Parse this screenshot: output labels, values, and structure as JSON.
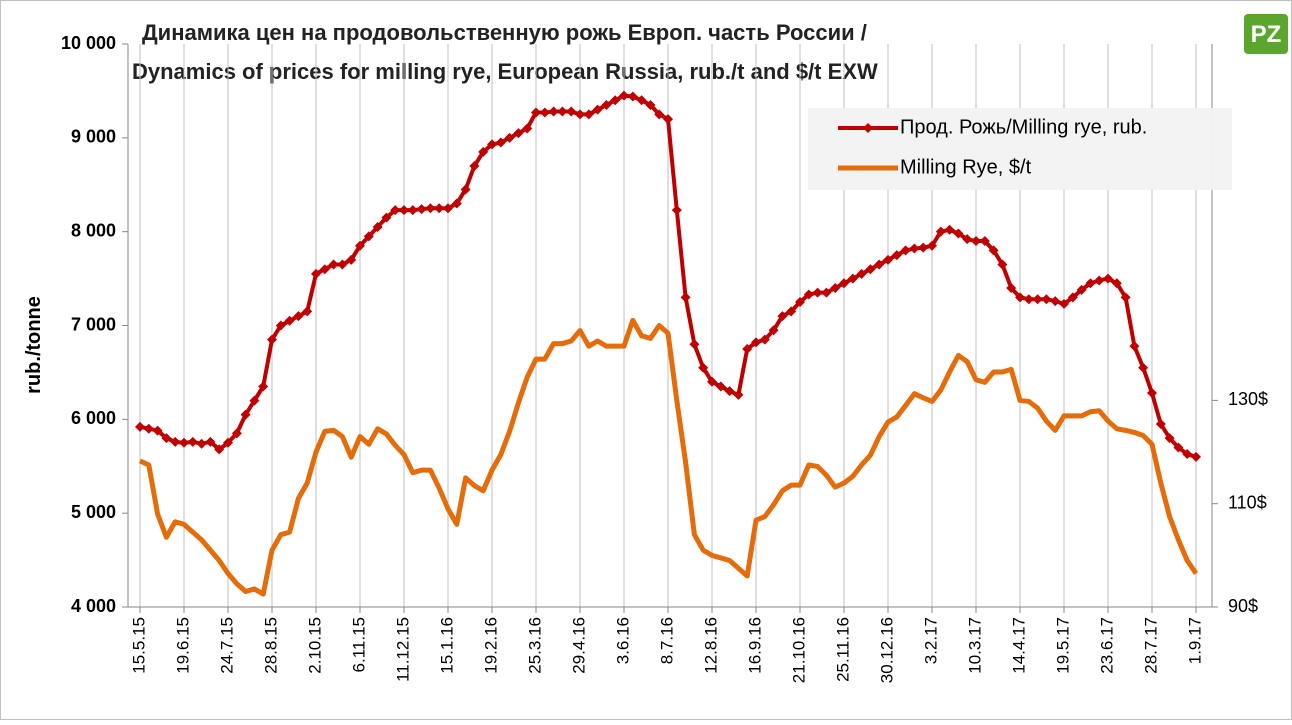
{
  "chart_data": {
    "type": "line",
    "title": [
      "Динамика цен на продовольственную рожь Европ. часть России /",
      "Dynamics of prices for milling rye, European Russia, rub./t and $/t EXW"
    ],
    "ylabel": "rub./tonne",
    "logo": "PZ",
    "categories": [
      "15.5.15",
      null,
      null,
      null,
      null,
      "19.6.15",
      null,
      null,
      null,
      null,
      "24.7.15",
      null,
      null,
      null,
      null,
      "28.8.15",
      null,
      null,
      null,
      null,
      "2.10.15",
      null,
      null,
      null,
      null,
      "6.11.15",
      null,
      null,
      null,
      null,
      "11.12.15",
      null,
      null,
      null,
      null,
      "15.1.16",
      null,
      null,
      null,
      null,
      "19.2.16",
      null,
      null,
      null,
      null,
      "25.3.16",
      null,
      null,
      null,
      null,
      "29.4.16",
      null,
      null,
      null,
      null,
      "3.6.16",
      null,
      null,
      null,
      null,
      "8.7.16",
      null,
      null,
      null,
      null,
      "12.8.16",
      null,
      null,
      null,
      null,
      "16.9.16",
      null,
      null,
      null,
      null,
      "21.10.16",
      null,
      null,
      null,
      null,
      "25.11.16",
      null,
      null,
      null,
      null,
      "30.12.16",
      null,
      null,
      null,
      null,
      "3.2.17",
      null,
      null,
      null,
      null,
      "10.3.17",
      null,
      null,
      null,
      null,
      "14.4.17",
      null,
      null,
      null,
      null,
      "19.5.17",
      null,
      null,
      null,
      null,
      "23.6.17",
      null,
      null,
      null,
      null,
      "28.7.17",
      null,
      null,
      null,
      null,
      "1.9.17"
    ],
    "series": [
      {
        "name": "Прод. Рожь/Milling rye, rub.",
        "color": "#c00000",
        "marker": "diamond",
        "values": [
          5920,
          5900,
          5880,
          5800,
          5760,
          5750,
          5760,
          5740,
          5760,
          5680,
          5750,
          5850,
          6050,
          6200,
          6350,
          6850,
          7000,
          7050,
          7100,
          7150,
          7550,
          7600,
          7650,
          7650,
          7700,
          7850,
          7950,
          8050,
          8150,
          8230,
          8230,
          8230,
          8240,
          8250,
          8250,
          8250,
          8300,
          8450,
          8700,
          8850,
          8930,
          8950,
          9000,
          9050,
          9100,
          9270,
          9270,
          9280,
          9280,
          9280,
          9250,
          9250,
          9300,
          9350,
          9400,
          9450,
          9440,
          9400,
          9350,
          9250,
          9200,
          8230,
          7300,
          6800,
          6550,
          6400,
          6350,
          6300,
          6260,
          6750,
          6820,
          6850,
          6950,
          7100,
          7150,
          7250,
          7330,
          7350,
          7350,
          7400,
          7450,
          7500,
          7550,
          7600,
          7650,
          7700,
          7750,
          7800,
          7820,
          7830,
          7850,
          8000,
          8020,
          7980,
          7920,
          7900,
          7900,
          7800,
          7650,
          7400,
          7300,
          7280,
          7280,
          7280,
          7260,
          7230,
          7300,
          7380,
          7450,
          7480,
          7500,
          7450,
          7300,
          6780,
          6550,
          6280,
          5950,
          5800,
          5700,
          5630,
          5600
        ]
      },
      {
        "name": "Milling Rye, $/t",
        "color": "#e46c0a",
        "axis": "y2",
        "values": [
          118.3,
          117.5,
          108,
          103.5,
          106.5,
          106,
          104.5,
          103,
          101,
          99,
          96.5,
          94.5,
          93,
          93.5,
          92.5,
          101,
          104,
          104.5,
          111,
          114,
          120,
          124,
          124.2,
          123,
          119,
          123,
          121.5,
          124.5,
          123.5,
          121.3,
          119.5,
          116,
          116.5,
          116.5,
          113,
          109,
          106,
          115,
          113.5,
          112.5,
          116.5,
          119.5,
          124,
          129.5,
          134.5,
          138,
          138,
          141,
          141,
          141.5,
          143.5,
          140.5,
          141.5,
          140.5,
          140.5,
          140.5,
          145.5,
          142.5,
          142,
          144.5,
          143,
          130,
          118,
          104,
          101,
          100,
          99.5,
          99,
          97.5,
          96,
          106.8,
          107.5,
          109.8,
          112.5,
          113.6,
          113.6,
          117.5,
          117.2,
          115.5,
          113.2,
          114,
          115.3,
          117.5,
          119.4,
          123,
          125.8,
          126.8,
          129,
          131.3,
          130.5,
          129.8,
          132,
          135.5,
          138.7,
          137.5,
          134,
          133.5,
          135.5,
          135.5,
          136,
          130,
          129.8,
          128.5,
          126,
          124.2,
          127,
          127,
          127,
          127.8,
          128,
          126,
          124.5,
          124.2,
          123.8,
          123.2,
          121.5,
          114,
          107.5,
          103,
          99,
          96.5
        ]
      }
    ],
    "ylim": [
      4000,
      10000
    ],
    "yticks": [
      {
        "value": 4000,
        "label": "4 000"
      },
      {
        "value": 5000,
        "label": "5 000"
      },
      {
        "value": 6000,
        "label": "6 000"
      },
      {
        "value": 7000,
        "label": "7 000"
      },
      {
        "value": 8000,
        "label": "8 000"
      },
      {
        "value": 9000,
        "label": "9 000"
      },
      {
        "value": 10000,
        "label": "10 000"
      }
    ],
    "y2lim": [
      90,
      199
    ],
    "y2ticks": [
      {
        "value": 90,
        "label": "90$"
      },
      {
        "value": 110,
        "label": "110$"
      },
      {
        "value": 130,
        "label": "130$"
      }
    ],
    "grid": "x",
    "legend": "upper right"
  }
}
